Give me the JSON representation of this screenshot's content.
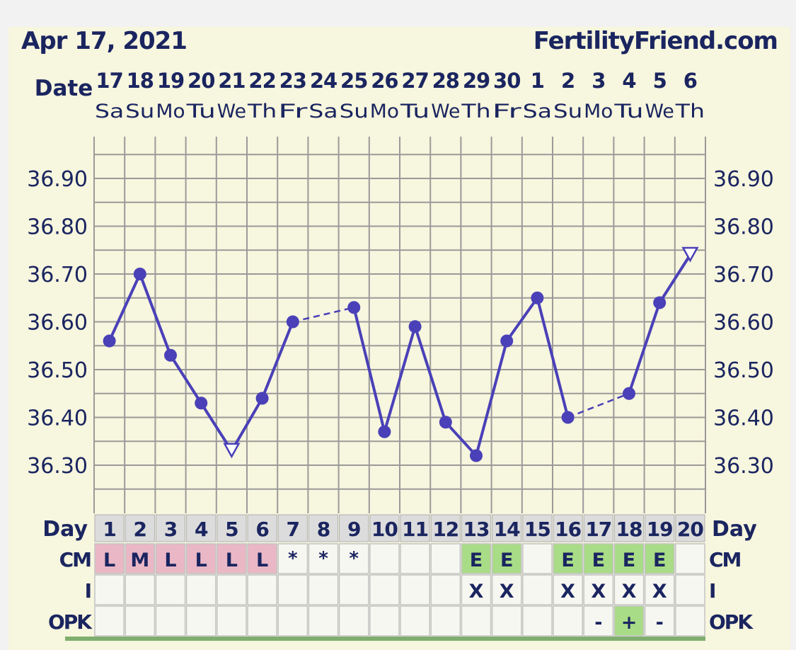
{
  "header": {
    "date": "Apr 17, 2021",
    "site": "FertilityFriend.com"
  },
  "labels": {
    "date": "Date",
    "day": "Day",
    "cm": "CM",
    "i": "I",
    "opk": "OPK"
  },
  "colors": {
    "line": "#4a40b8",
    "grid": "#9a9a9a",
    "panel": "#f7f6de",
    "text": "#1a2560",
    "cm_pink": "#eab7c6",
    "cm_green": "#a9dc86",
    "day_row": "#dcdcdc",
    "cell": "#f7f7f2"
  },
  "chart_data": {
    "type": "line",
    "ylabel": "",
    "yticks": [
      "36.30",
      "36.40",
      "36.50",
      "36.60",
      "36.70",
      "36.80",
      "36.90"
    ],
    "ylim": [
      36.22,
      36.99
    ],
    "dates": [
      "17",
      "18",
      "19",
      "20",
      "21",
      "22",
      "23",
      "24",
      "25",
      "26",
      "27",
      "28",
      "29",
      "30",
      "1",
      "2",
      "3",
      "4",
      "5",
      "6"
    ],
    "weekdays": [
      "Sa",
      "Su",
      "Mo",
      "Tu",
      "We",
      "Th",
      "Fr",
      "Sa",
      "Su",
      "Mo",
      "Tu",
      "We",
      "Th",
      "Fr",
      "Sa",
      "Su",
      "Mo",
      "Tu",
      "We",
      "Th"
    ],
    "cycle_days": [
      1,
      2,
      3,
      4,
      5,
      6,
      7,
      8,
      9,
      10,
      11,
      12,
      13,
      14,
      15,
      16,
      17,
      18,
      19,
      20
    ],
    "temperatures": [
      36.56,
      36.7,
      36.53,
      36.43,
      36.33,
      36.44,
      36.6,
      null,
      36.63,
      36.37,
      36.59,
      36.39,
      36.32,
      36.56,
      36.65,
      36.4,
      null,
      36.45,
      36.64,
      36.74
    ],
    "discarded_days": [
      5,
      20
    ],
    "dashed_segments": [
      [
        7,
        9
      ],
      [
        16,
        18
      ]
    ],
    "cm": [
      "L",
      "M",
      "L",
      "L",
      "L",
      "L",
      "*",
      "*",
      "*",
      "",
      "",
      "",
      "E",
      "E",
      "",
      "E",
      "E",
      "E",
      "E",
      ""
    ],
    "intercourse": [
      "",
      "",
      "",
      "",
      "",
      "",
      "",
      "",
      "",
      "",
      "",
      "",
      "X",
      "X",
      "",
      "X",
      "X",
      "X",
      "X",
      ""
    ],
    "opk": [
      "",
      "",
      "",
      "",
      "",
      "",
      "",
      "",
      "",
      "",
      "",
      "",
      "",
      "",
      "",
      "",
      "-",
      "+",
      "-",
      ""
    ]
  }
}
